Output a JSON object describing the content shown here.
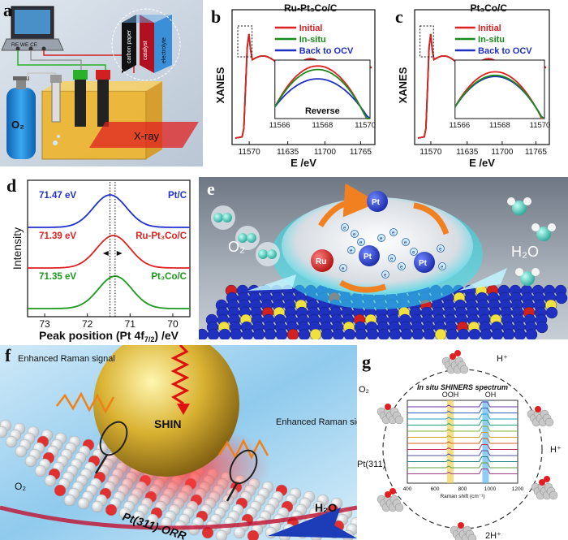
{
  "panel_labels": {
    "a": "a",
    "b": "b",
    "c": "c",
    "d": "d",
    "e": "e",
    "f": "f",
    "g": "g"
  },
  "panel_a": {
    "instrument_labels": "RE  WE  CE",
    "layers": [
      "carbon paper",
      "catalyst",
      "electrolyte"
    ],
    "gas": "O₂",
    "beam": "X-ray",
    "colors": {
      "carbon_paper": "#222222",
      "catalyst": "#b01020",
      "electrolyte": "#3a8fd8",
      "tank": "#1d8fe0",
      "cell": "#f2b320",
      "beam": "#e02020"
    }
  },
  "chart_data": [
    {
      "type": "line",
      "panel": "b",
      "title": "Ru-Pt₃Co/C",
      "ylabel": "XANES",
      "xlabel": "E /eV",
      "x_ticks": [
        "11570",
        "11635",
        "11700",
        "11765"
      ],
      "series": [
        {
          "name": "Initial",
          "color": "#e02020"
        },
        {
          "name": "In-situ",
          "color": "#1a8a1a"
        },
        {
          "name": "Back to OCV",
          "color": "#2030c0"
        }
      ],
      "inset": {
        "label": "Reverse",
        "x_ticks": [
          "11566",
          "11568",
          "11570"
        ],
        "peak_order": [
          "Initial",
          "Back to OCV",
          "In-situ"
        ]
      }
    },
    {
      "type": "line",
      "panel": "c",
      "title": "Pt₃Co/C",
      "ylabel": "XANES",
      "xlabel": "E /eV",
      "x_ticks": [
        "11570",
        "11635",
        "11700",
        "11765"
      ],
      "series": [
        {
          "name": "Initial",
          "color": "#e02020"
        },
        {
          "name": "In-situ",
          "color": "#1a8a1a"
        },
        {
          "name": "Back to OCV",
          "color": "#2030c0"
        }
      ],
      "inset": {
        "x_ticks": [
          "11566",
          "11568",
          "11570"
        ]
      }
    },
    {
      "type": "line",
      "panel": "d",
      "ylabel": "Intensity",
      "xlabel": "Peak position (Pt 4f",
      "xlabel_sub": "7/2",
      "xlabel_end": ") /eV",
      "x_ticks": [
        73,
        72,
        71,
        70
      ],
      "xlim": [
        73.4,
        69.6
      ],
      "series": [
        {
          "name": "Pt/C",
          "peak_ev": 71.47,
          "peak_label": "71.47 eV",
          "color": "#2030d0"
        },
        {
          "name": "Ru-Pt₃Co/C",
          "peak_ev": 71.39,
          "peak_label": "71.39 eV",
          "color": "#e02020"
        },
        {
          "name": "Pt₃Co/C",
          "peak_ev": 71.35,
          "peak_label": "71.35 eV",
          "color": "#1a9a1a"
        }
      ],
      "dotted_lines_ev": [
        71.47,
        71.35
      ]
    },
    {
      "type": "line",
      "panel": "g",
      "title": "In situ SHINERS spectrum",
      "xlabel": "Raman shift (cm⁻¹)",
      "x_ticks": [
        "400",
        "600",
        "800",
        "1000",
        "1200"
      ],
      "bands": [
        {
          "label": "OOH"
        },
        {
          "label": "OH"
        }
      ],
      "cycle_labels": {
        "o2": "O₂",
        "h1": "H⁺",
        "h2": "H⁺",
        "h3": "2H⁺",
        "surface": "Pt(311)"
      }
    }
  ],
  "panel_e": {
    "labels": {
      "pt": "Pt",
      "ru": "Ru",
      "e": "e",
      "o2": "O₂",
      "h2o": "H₂O"
    }
  },
  "panel_f": {
    "labels": {
      "raman1": "Enhanced Raman signal",
      "raman2": "Enhanced Raman signal",
      "shin": "SHIN",
      "o2": "O₂",
      "surface": "Pt(311)-ORR",
      "h2o": "H₂O"
    }
  }
}
